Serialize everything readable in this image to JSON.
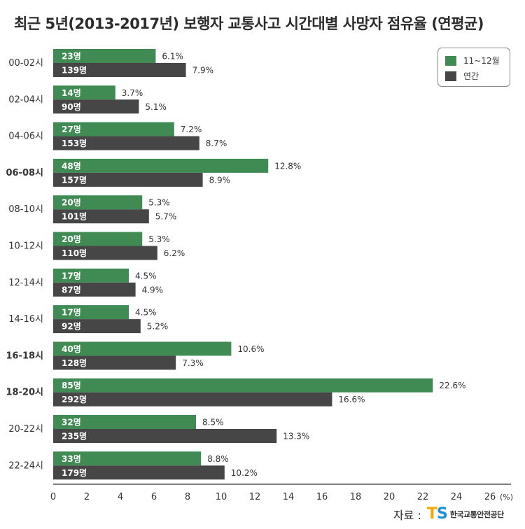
{
  "chart_data": {
    "type": "bar",
    "orientation": "horizontal",
    "title": "최근 5년(2013-2017년) 보행자 교통사고 시간대별 사망자 점유율 (연평균)",
    "categories": [
      "00-02시",
      "02-04시",
      "04-06시",
      "06-08시",
      "08-10시",
      "10-12시",
      "12-14시",
      "14-16시",
      "16-18시",
      "18-20시",
      "20-22시",
      "22-24시"
    ],
    "highlighted_categories": [
      "06-08시",
      "16-18시",
      "18-20시"
    ],
    "series": [
      {
        "name": "11~12월",
        "color": "#3f8b53",
        "values": [
          6.1,
          3.7,
          7.2,
          12.8,
          5.3,
          5.3,
          4.5,
          4.5,
          10.6,
          22.6,
          8.5,
          8.8
        ],
        "value_labels": [
          "6.1%",
          "3.7%",
          "7.2%",
          "12.8%",
          "5.3%",
          "5.3%",
          "4.5%",
          "4.5%",
          "10.6%",
          "22.6%",
          "8.5%",
          "8.8%"
        ],
        "count_labels": [
          "23명",
          "14명",
          "27명",
          "48명",
          "20명",
          "20명",
          "17명",
          "17명",
          "40명",
          "85명",
          "32명",
          "33명"
        ]
      },
      {
        "name": "연간",
        "color": "#464646",
        "values": [
          7.9,
          5.1,
          8.7,
          8.9,
          5.7,
          6.2,
          4.9,
          5.2,
          7.3,
          16.6,
          13.3,
          10.2
        ],
        "value_labels": [
          "7.9%",
          "5.1%",
          "8.7%",
          "8.9%",
          "5.7%",
          "6.2%",
          "4.9%",
          "5.2%",
          "7.3%",
          "16.6%",
          "13.3%",
          "10.2%"
        ],
        "count_labels": [
          "139명",
          "90명",
          "153명",
          "157명",
          "101명",
          "110명",
          "87명",
          "92명",
          "128명",
          "292명",
          "235명",
          "179명"
        ]
      }
    ],
    "xlim": [
      0,
      26
    ],
    "xticks": [
      0,
      2,
      4,
      6,
      8,
      10,
      12,
      14,
      16,
      18,
      20,
      22,
      24,
      26
    ],
    "xtick_labels": [
      "0",
      "2",
      "4",
      "6",
      "8",
      "10",
      "12",
      "14",
      "16",
      "18",
      "20",
      "22",
      "24",
      "26"
    ],
    "x_unit": "(%)",
    "grid": false,
    "legend_position": "top-right"
  },
  "source": {
    "label": "자료 :",
    "logo_t": "T",
    "logo_s": "S",
    "org": "한국교통안전공단"
  }
}
